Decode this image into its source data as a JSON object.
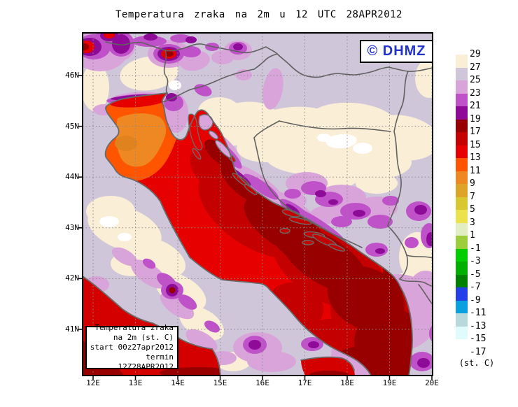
{
  "title": "Temperatura zraka na 2m u 12 UTC 28APR2012",
  "logo": {
    "text": "© DHMZ",
    "color": "#2233cc"
  },
  "info_box": {
    "lines": [
      "Temperatura zraka",
      "na 2m (st. C)",
      "start 00z27apr2012",
      "termin 12Z28APR2012"
    ]
  },
  "axes": {
    "lat": [
      "46N",
      "45N",
      "44N",
      "43N",
      "42N",
      "41N"
    ],
    "lon": [
      "12E",
      "13E",
      "14E",
      "15E",
      "16E",
      "17E",
      "18E",
      "19E",
      "20E"
    ]
  },
  "colorbar": {
    "unit": "(st. C)",
    "tick_labels": [
      "29",
      "27",
      "25",
      "23",
      "21",
      "19",
      "17",
      "15",
      "13",
      "11",
      "9",
      "7",
      "5",
      "3",
      "1",
      "-1",
      "-3",
      "-5",
      "-7",
      "-9",
      "-11",
      "-13",
      "-15",
      "-17"
    ],
    "cell_colors": [
      "#fbeed6",
      "#cfc6da",
      "#d9a4d9",
      "#bf52c8",
      "#8e0b98",
      "#980000",
      "#c40000",
      "#e60000",
      "#ff5500",
      "#ee8822",
      "#dda428",
      "#d8c72e",
      "#ece24e",
      "#e2eec2",
      "#9ccd3a",
      "#00cd00",
      "#00b000",
      "#008000",
      "#2340e8",
      "#09a0e0",
      "#b8d8dc",
      "#e0fbfb",
      "#ffffff"
    ]
  },
  "palette": {
    "lavender": "#cfc6da",
    "plum": "#d9a4d9",
    "orchid": "#bf52c8",
    "purple": "#8e0b98",
    "cream": "#fbeed6",
    "white": "#ffffff",
    "maroon": "#980000",
    "darkred": "#c40000",
    "red": "#e60000",
    "tyr_red": "#d40000",
    "orangered": "#ff5500",
    "orange": "#ee8822",
    "deep_orange": "#e0821e",
    "island_plum": "#daa5da",
    "coast": "#6a6a6a",
    "border": "#606060",
    "grid": "#8a8a8a",
    "frame": "#000000"
  }
}
